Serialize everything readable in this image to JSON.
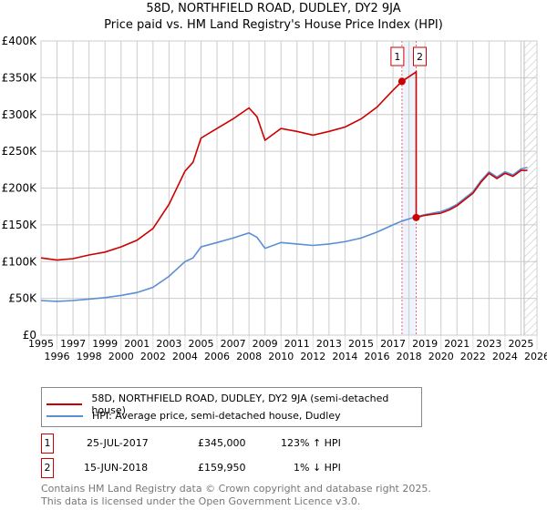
{
  "title": "58D, NORTHFIELD ROAD, DUDLEY, DY2 9JA",
  "subtitle": "Price paid vs. HM Land Registry's House Price Index (HPI)",
  "chart_data": {
    "type": "line",
    "xlim": [
      1995,
      2026
    ],
    "ylim": [
      0,
      400000
    ],
    "x_ticks": [
      "1995",
      "1996",
      "1997",
      "1998",
      "1999",
      "2000",
      "2001",
      "2002",
      "2003",
      "2004",
      "2005",
      "2006",
      "2007",
      "2008",
      "2009",
      "2010",
      "2011",
      "2012",
      "2013",
      "2014",
      "2015",
      "2016",
      "2017",
      "2018",
      "2019",
      "2020",
      "2021",
      "2022",
      "2023",
      "2024",
      "2025",
      "2026"
    ],
    "y_ticks": [
      {
        "v": 0,
        "label": "£0"
      },
      {
        "v": 50000,
        "label": "£50K"
      },
      {
        "v": 100000,
        "label": "£100K"
      },
      {
        "v": 150000,
        "label": "£150K"
      },
      {
        "v": 200000,
        "label": "£200K"
      },
      {
        "v": 250000,
        "label": "£250K"
      },
      {
        "v": 300000,
        "label": "£300K"
      },
      {
        "v": 350000,
        "label": "£350K"
      },
      {
        "v": 400000,
        "label": "£400K"
      }
    ],
    "series": [
      {
        "name": "58D, NORTHFIELD ROAD, DUDLEY, DY2 9JA (semi-detached house)",
        "color": "#cc0000",
        "x": [
          1995,
          1996,
          1997,
          1998,
          1999,
          2000,
          2001,
          2002,
          2003,
          2004,
          2004.5,
          2005,
          2006,
          2007,
          2008,
          2008.5,
          2009,
          2010,
          2011,
          2012,
          2013,
          2014,
          2015,
          2016,
          2017,
          2017.56,
          2018.45,
          2018.45,
          2019,
          2020,
          2020.5,
          2021,
          2022,
          2022.5,
          2023,
          2023.5,
          2024,
          2024.5,
          2025,
          2025.4
        ],
        "y": [
          105000,
          102000,
          104000,
          109000,
          113000,
          120000,
          129000,
          145000,
          178000,
          223000,
          235000,
          268000,
          281000,
          294000,
          309000,
          297000,
          265000,
          281000,
          277000,
          272000,
          277000,
          283000,
          294000,
          310000,
          333000,
          345000,
          358000,
          159950,
          163000,
          166000,
          170000,
          176000,
          193000,
          208000,
          220000,
          213000,
          220000,
          216000,
          224000,
          224000
        ]
      },
      {
        "name": "HPI: Average price, semi-detached house, Dudley",
        "color": "#5b8fd4",
        "x": [
          1995,
          1996,
          1997,
          1998,
          1999,
          2000,
          2001,
          2002,
          2003,
          2004,
          2004.5,
          2005,
          2006,
          2007,
          2008,
          2008.5,
          2009,
          2010,
          2011,
          2012,
          2013,
          2014,
          2015,
          2016,
          2017,
          2017.56,
          2018,
          2018.45,
          2019,
          2020,
          2020.5,
          2021,
          2022,
          2022.5,
          2023,
          2023.5,
          2024,
          2024.5,
          2025,
          2025.4
        ],
        "y": [
          47000,
          46000,
          47000,
          49000,
          51000,
          54000,
          58000,
          65000,
          80000,
          100000,
          105000,
          120000,
          126000,
          132000,
          139000,
          133000,
          118000,
          126000,
          124000,
          122000,
          124000,
          127000,
          132000,
          140000,
          150000,
          155000,
          158000,
          161000,
          164000,
          168000,
          172000,
          178000,
          195000,
          210000,
          222000,
          215000,
          222000,
          218000,
          226000,
          228000
        ]
      }
    ],
    "sales": [
      {
        "id": "1",
        "x": 2017.56,
        "y": 345000
      },
      {
        "id": "2",
        "x": 2018.45,
        "y": 159950
      }
    ],
    "forecast_from": 2025.2
  },
  "legend": {
    "red": "58D, NORTHFIELD ROAD, DUDLEY, DY2 9JA (semi-detached house)",
    "blue": "HPI: Average price, semi-detached house, Dudley"
  },
  "sales_table": [
    {
      "id": "1",
      "date": "25-JUL-2017",
      "price": "£345,000",
      "hpi": "123% ↑ HPI"
    },
    {
      "id": "2",
      "date": "15-JUN-2018",
      "price": "£159,950",
      "hpi": "1% ↓ HPI"
    }
  ],
  "footer": [
    "Contains HM Land Registry data © Crown copyright and database right 2025.",
    "This data is licensed under the Open Government Licence v3.0."
  ]
}
